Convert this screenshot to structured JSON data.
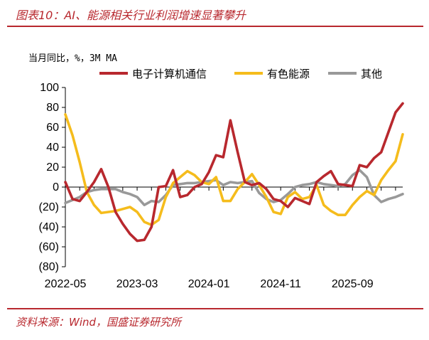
{
  "title": "图表10：AI、能源相关行业利润增速显著攀升",
  "source": "资料来源：Wind，国盛证券研究所",
  "chart_data": {
    "type": "line",
    "unit_label": "当月同比，%，3M MA",
    "ylim": [
      -80,
      100
    ],
    "yticks": [
      100,
      80,
      60,
      40,
      20,
      0,
      -20,
      -40,
      -60,
      -80
    ],
    "ytick_labels": [
      "100",
      "80",
      "60",
      "40",
      "20",
      "0",
      "(20)",
      "(40)",
      "(60)",
      "(80)"
    ],
    "x_start": "2022-05",
    "x_labels": [
      "2022-05",
      "2023-03",
      "2024-01",
      "2024-11",
      "2025-09"
    ],
    "x_label_index": [
      0,
      10,
      20,
      30,
      40
    ],
    "grid": false,
    "legend_position": "top",
    "series": [
      {
        "name": "电子计算机通信",
        "color": "#b8282e",
        "values": [
          5,
          -12,
          -14,
          -5,
          5,
          18,
          0,
          -25,
          -37,
          -47,
          -54,
          -53,
          -40,
          0,
          1,
          17,
          -10,
          -8,
          0,
          3,
          15,
          32,
          30,
          67,
          35,
          5,
          2,
          4,
          -2,
          -12,
          -14,
          -20,
          -11,
          -14,
          -17,
          5,
          11,
          16,
          3,
          2,
          1,
          22,
          20,
          29,
          35,
          55,
          75,
          84
        ]
      },
      {
        "name": "有色能源",
        "color": "#f5bc1c",
        "values": [
          73,
          52,
          25,
          -5,
          -18,
          -26,
          -25,
          -24,
          -22,
          -20,
          -25,
          -35,
          -38,
          -33,
          -10,
          4,
          10,
          16,
          12,
          5,
          3,
          10,
          -14,
          -14,
          -2,
          5,
          13,
          2,
          -10,
          -25,
          -27,
          -10,
          -5,
          -12,
          -10,
          2,
          -18,
          -24,
          -28,
          -28,
          -18,
          -10,
          -4,
          -8,
          7,
          17,
          26,
          53
        ]
      },
      {
        "name": "其他",
        "color": "#999999",
        "values": [
          -16,
          -13,
          -10,
          -5,
          -3,
          -2,
          -2,
          -2,
          -5,
          -7,
          -10,
          -18,
          -14,
          -15,
          -8,
          2,
          3,
          4,
          4,
          5,
          6,
          7,
          2,
          5,
          4,
          5,
          6,
          -6,
          -12,
          -15,
          -13,
          -7,
          0,
          2,
          3,
          5,
          3,
          2,
          1,
          3,
          12,
          17,
          10,
          -8,
          -15,
          -12,
          -10,
          -7
        ]
      }
    ]
  }
}
